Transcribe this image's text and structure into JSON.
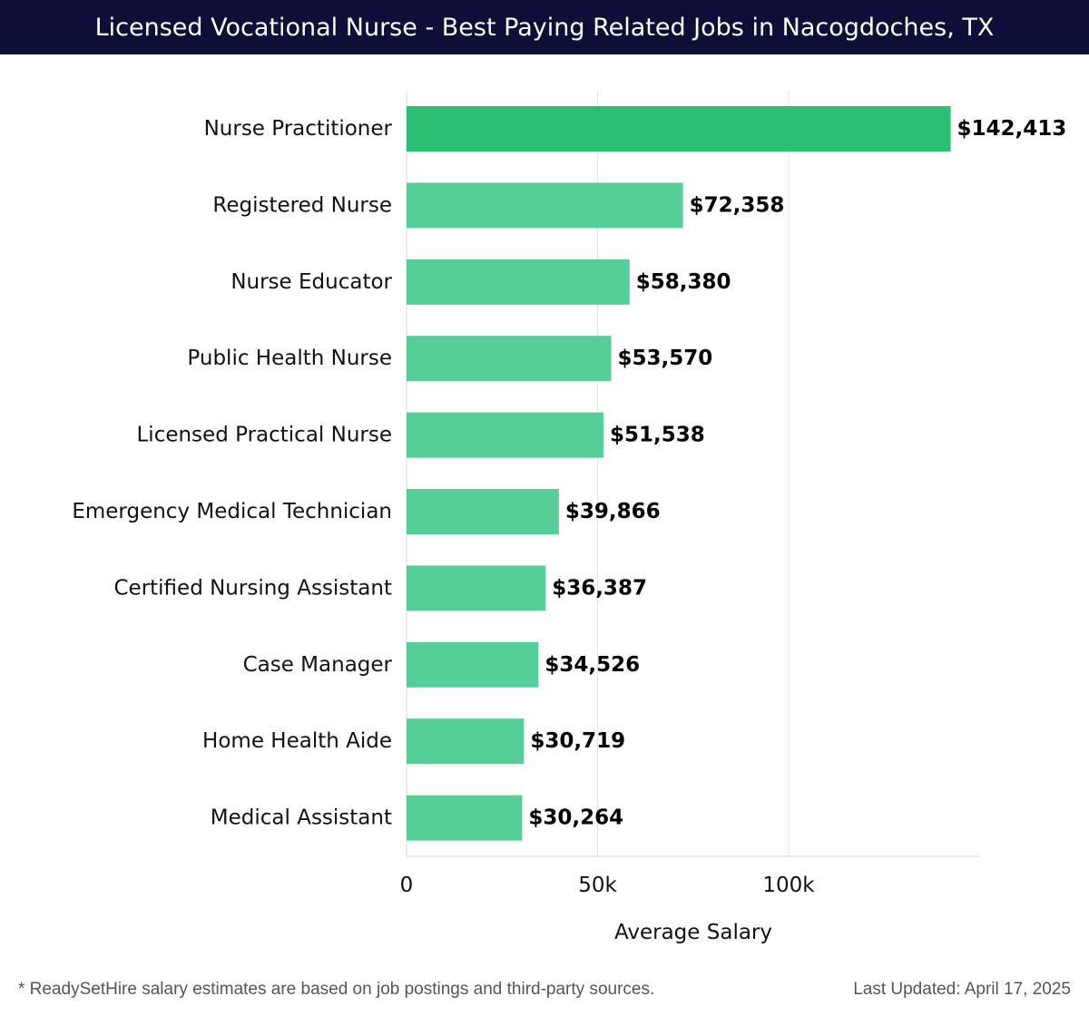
{
  "header": {
    "title": "Licensed Vocational Nurse - Best Paying Related Jobs in Nacogdoches, TX"
  },
  "chart_data": {
    "type": "bar",
    "orientation": "horizontal",
    "title": "Licensed Vocational Nurse - Best Paying Related Jobs in Nacogdoches, TX",
    "xlabel": "Average Salary",
    "ylabel": "",
    "xlim": [
      0,
      150000
    ],
    "xticks": [
      0,
      50000,
      100000
    ],
    "xtick_labels": [
      "0",
      "50k",
      "100k"
    ],
    "grid": true,
    "categories": [
      "Nurse Practitioner",
      "Registered Nurse",
      "Nurse Educator",
      "Public Health Nurse",
      "Licensed Practical Nurse",
      "Emergency Medical Technician",
      "Certified Nursing Assistant",
      "Case Manager",
      "Home Health Aide",
      "Medical Assistant"
    ],
    "values": [
      142413,
      72358,
      58380,
      53570,
      51538,
      39866,
      36387,
      34526,
      30719,
      30264
    ],
    "value_labels": [
      "$142,413",
      "$72,358",
      "$58,380",
      "$53,570",
      "$51,538",
      "$39,866",
      "$36,387",
      "$34,526",
      "$30,719",
      "$30,264"
    ],
    "colors": {
      "top_bar": "#2bbf73",
      "bar": "#56ce97",
      "gridline": "#e3e3e8",
      "axis": "#d4d4dc",
      "text": "#111111"
    }
  },
  "footer": {
    "note": "* ReadySetHire salary estimates are based on job postings and third-party sources.",
    "last_updated": "Last Updated: April 17, 2025"
  }
}
